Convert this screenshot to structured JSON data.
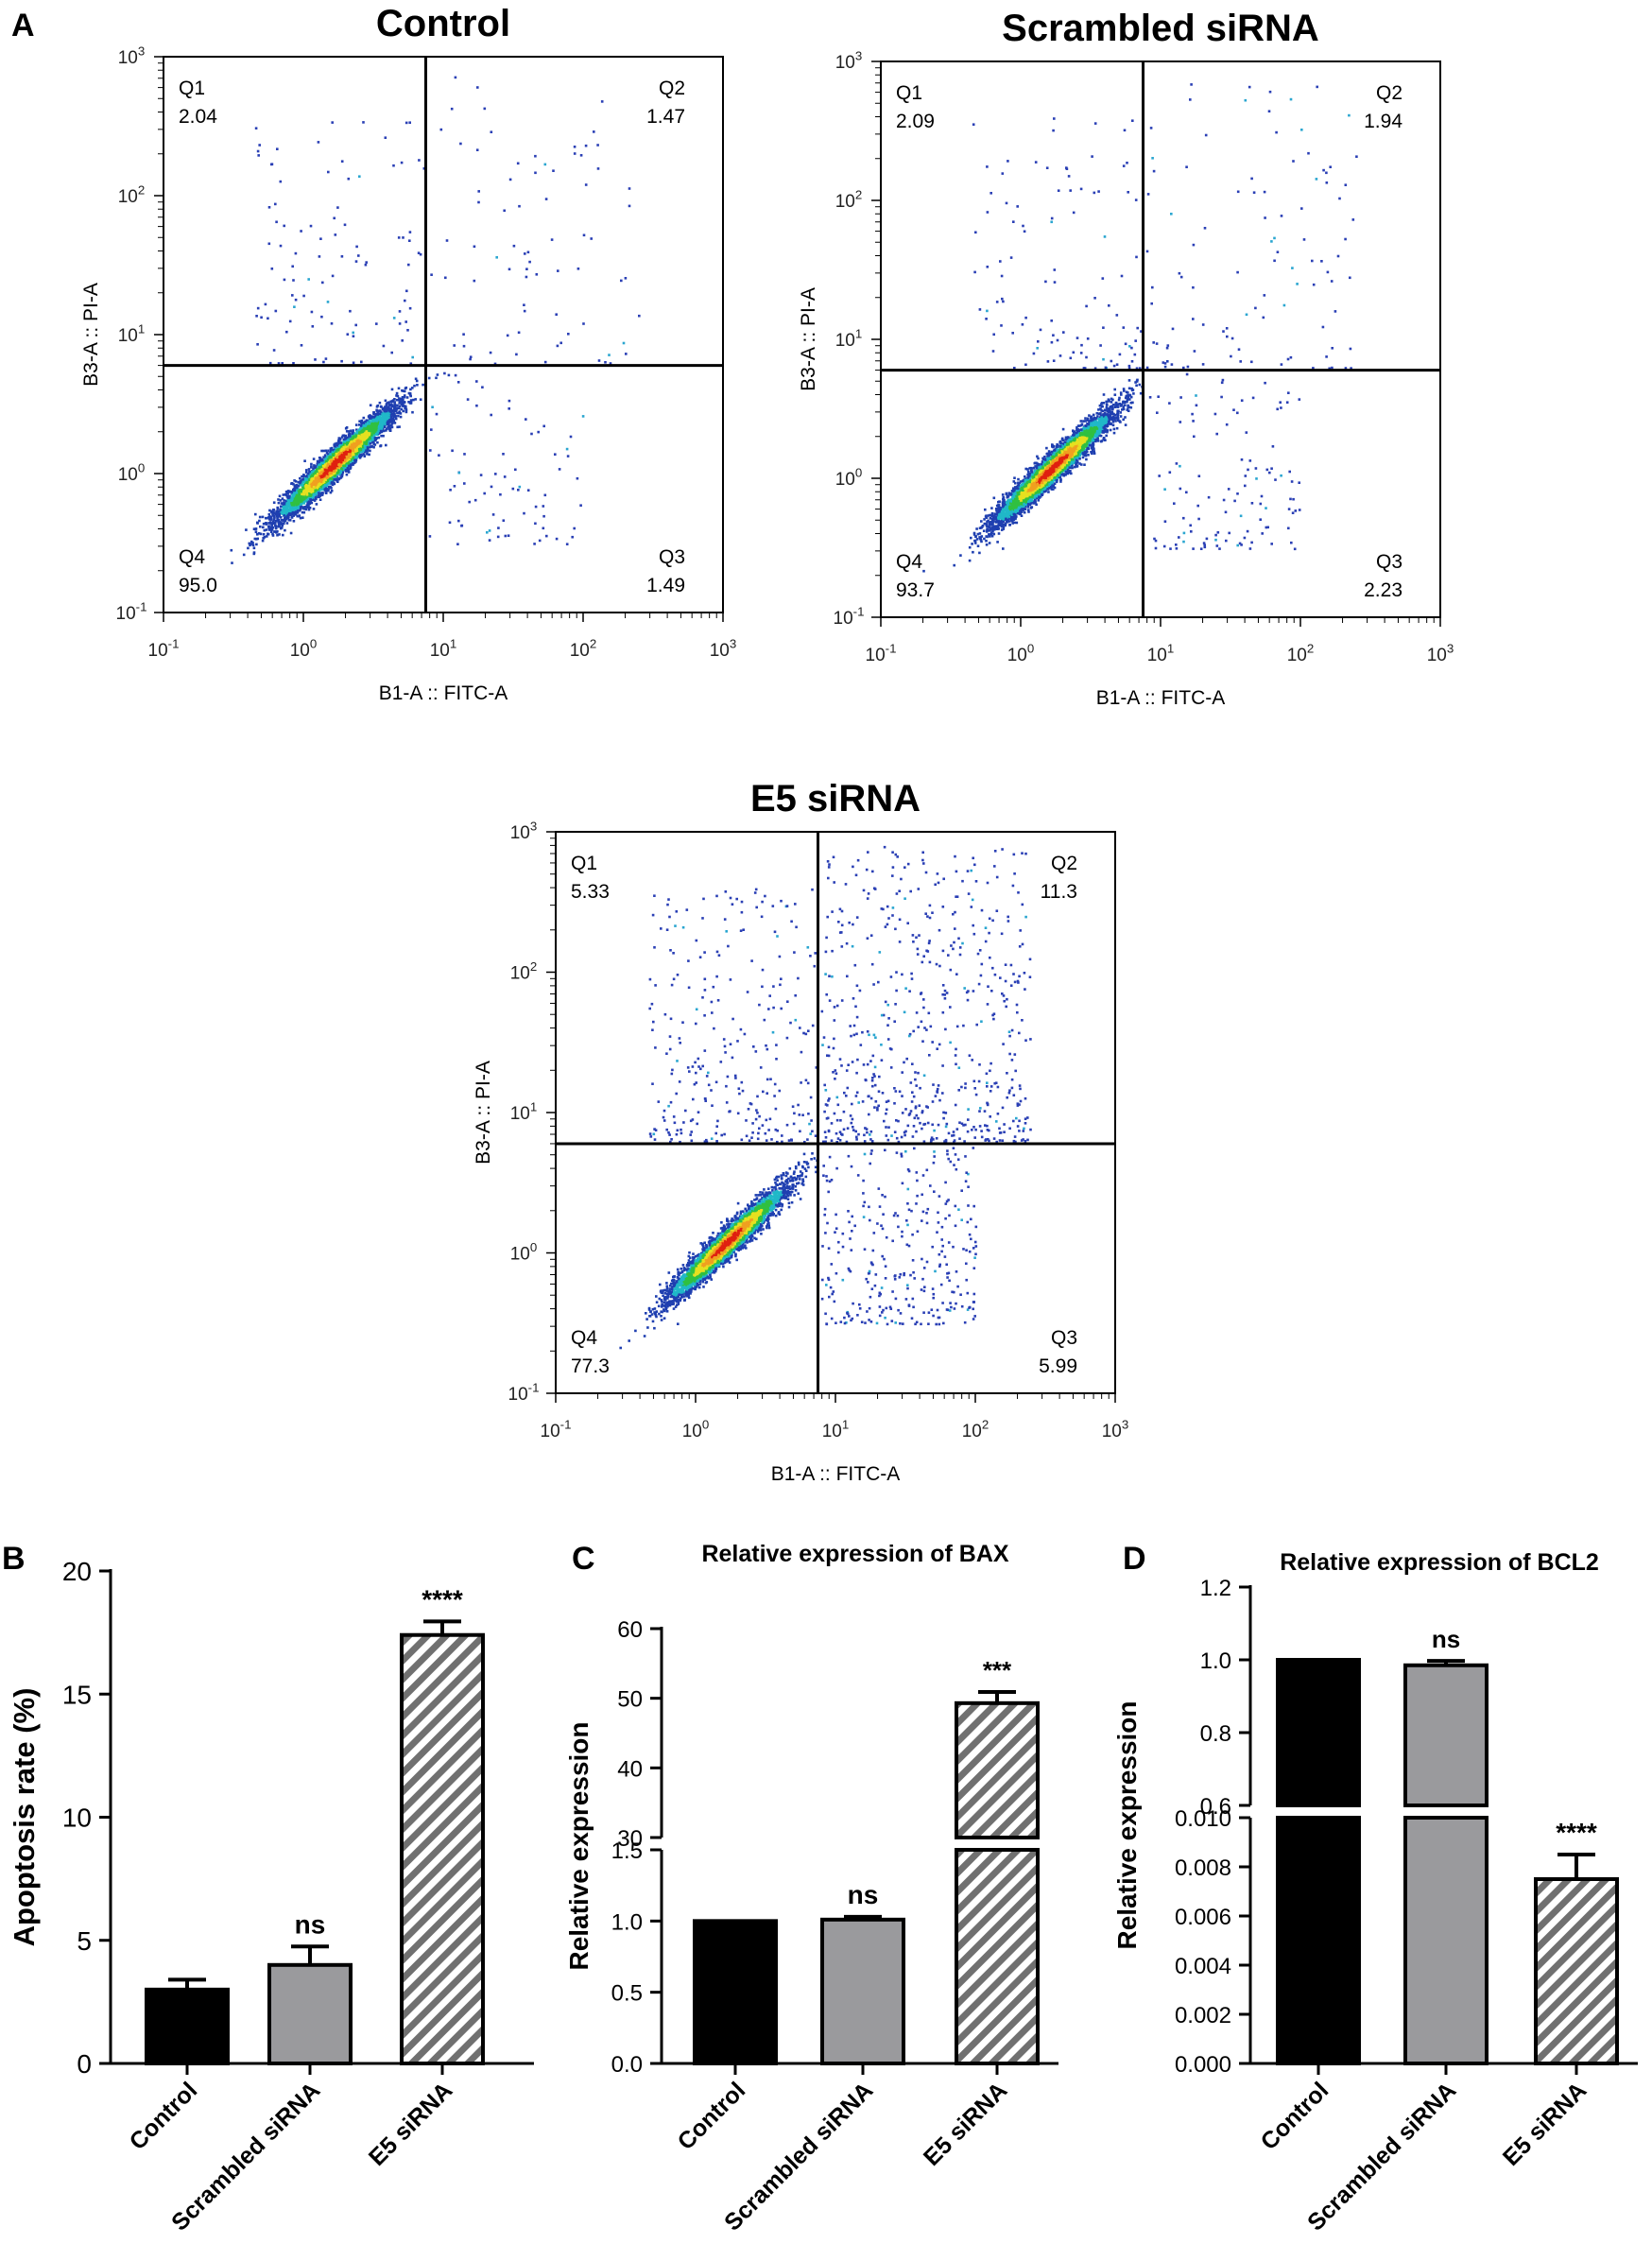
{
  "chart_data": [
    {
      "panel": "A",
      "type": "scatter",
      "title": "Control",
      "xlabel": "B1-A :: FITC-A",
      "ylabel": "B3-A :: PI-A",
      "scale": "log",
      "xlim": [
        0.1,
        1000
      ],
      "ylim": [
        0.1,
        1000
      ],
      "gate": {
        "x": 7.5,
        "y": 6
      },
      "quadrants": [
        {
          "name": "Q1",
          "value": "2.04"
        },
        {
          "name": "Q2",
          "value": "1.47"
        },
        {
          "name": "Q3",
          "value": "1.49"
        },
        {
          "name": "Q4",
          "value": "95.0"
        }
      ]
    },
    {
      "panel": "A",
      "type": "scatter",
      "title": "Scrambled siRNA",
      "xlabel": "B1-A :: FITC-A",
      "ylabel": "B3-A :: PI-A",
      "scale": "log",
      "xlim": [
        0.1,
        1000
      ],
      "ylim": [
        0.1,
        1000
      ],
      "gate": {
        "x": 7.5,
        "y": 6
      },
      "quadrants": [
        {
          "name": "Q1",
          "value": "2.09"
        },
        {
          "name": "Q2",
          "value": "1.94"
        },
        {
          "name": "Q3",
          "value": "2.23"
        },
        {
          "name": "Q4",
          "value": "93.7"
        }
      ]
    },
    {
      "panel": "A",
      "type": "scatter",
      "title": "E5 siRNA",
      "xlabel": "B1-A :: FITC-A",
      "ylabel": "B3-A :: PI-A",
      "scale": "log",
      "xlim": [
        0.1,
        1000
      ],
      "ylim": [
        0.1,
        1000
      ],
      "gate": {
        "x": 7.5,
        "y": 6
      },
      "quadrants": [
        {
          "name": "Q1",
          "value": "5.33"
        },
        {
          "name": "Q2",
          "value": "11.3"
        },
        {
          "name": "Q3",
          "value": "5.99"
        },
        {
          "name": "Q4",
          "value": "77.3"
        }
      ]
    },
    {
      "panel": "B",
      "type": "bar",
      "title": "",
      "ylabel": "Apoptosis rate (%)",
      "ylim": [
        0,
        20
      ],
      "yticks": [
        0,
        5,
        10,
        15,
        20
      ],
      "categories": [
        "Control",
        "Scrambled siRNA",
        "E5 siRNA"
      ],
      "values": [
        3.0,
        4.0,
        17.4
      ],
      "errors": [
        0.4,
        0.75,
        0.55
      ],
      "significance": [
        "",
        "ns",
        "****"
      ]
    },
    {
      "panel": "C",
      "type": "bar",
      "title": "Relative expression of BAX",
      "ylabel": "Relative expression",
      "broken_axis": {
        "lower": [
          0,
          1.5
        ],
        "upper": [
          30,
          60
        ]
      },
      "lower_ticks": [
        "0.0",
        "0.5",
        "1.0",
        "1.5"
      ],
      "upper_ticks": [
        "30",
        "40",
        "50",
        "60"
      ],
      "categories": [
        "Control",
        "Scrambled siRNA",
        "E5 siRNA"
      ],
      "values": [
        1.0,
        1.01,
        49.3
      ],
      "errors": [
        0,
        0.02,
        1.6
      ],
      "significance": [
        "",
        "ns",
        "***"
      ]
    },
    {
      "panel": "D",
      "type": "bar",
      "title": "Relative expression of BCL2",
      "ylabel": "Relative expression",
      "broken_axis": {
        "lower": [
          0,
          0.01
        ],
        "upper": [
          0.6,
          1.2
        ]
      },
      "lower_ticks": [
        "0.000",
        "0.002",
        "0.004",
        "0.006",
        "0.008",
        "0.010"
      ],
      "upper_ticks": [
        "0.6",
        "0.8",
        "1.0",
        "1.2"
      ],
      "categories": [
        "Control",
        "Scrambled siRNA",
        "E5 siRNA"
      ],
      "values": [
        1.0,
        0.985,
        0.0075
      ],
      "errors": [
        0,
        0.012,
        0.001
      ],
      "significance": [
        "",
        "ns",
        "****"
      ]
    }
  ]
}
